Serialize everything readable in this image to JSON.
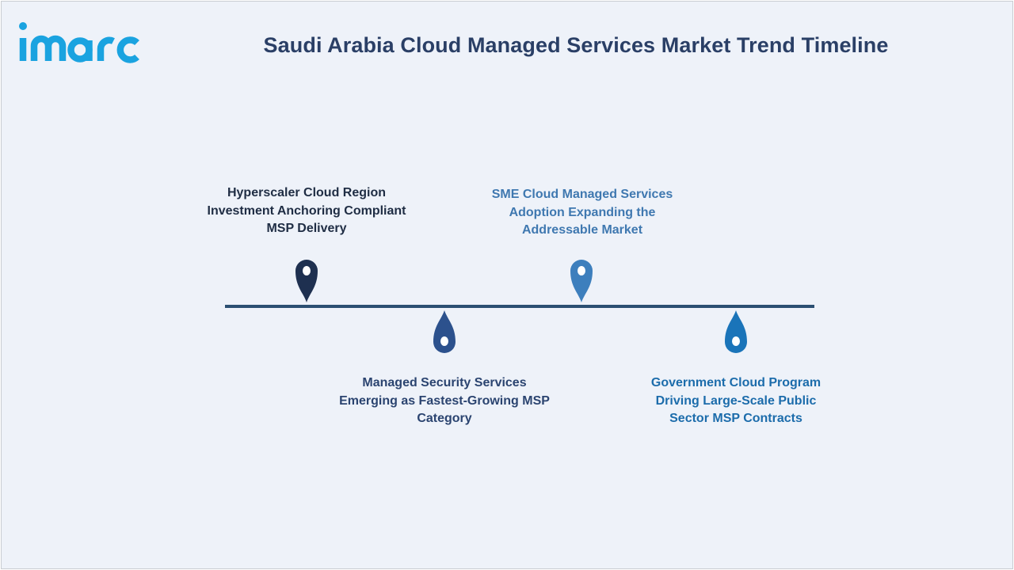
{
  "brand": {
    "name": "imarc",
    "logo_color": "#1aa3e0"
  },
  "title": "Saudi Arabia Cloud Managed Services Market Trend Timeline",
  "colors": {
    "title": "#2a3f66",
    "line": "#2b4f72",
    "background": "#eef2f9"
  },
  "milestones": [
    {
      "text": "Hyperscaler Cloud Region\nInvestment Anchoring Compliant\nMSP Delivery",
      "pin_color": "#1e3050",
      "text_color": "#1f2d44",
      "marker_icon": "location-pin-icon"
    },
    {
      "text": "Managed Security Services\nEmerging as Fastest-Growing MSP\nCategory",
      "pin_color": "#2c518d",
      "text_color": "#2b4470",
      "marker_icon": "drop-pin-icon"
    },
    {
      "text": "SME Cloud Managed Services\nAdoption Expanding the\nAddressable Market",
      "pin_color": "#3d7fbd",
      "text_color": "#3f78b0",
      "marker_icon": "location-pin-icon"
    },
    {
      "text": "Government Cloud Program\nDriving Large-Scale Public\nSector MSP Contracts",
      "pin_color": "#1a74b9",
      "text_color": "#1c6cab",
      "marker_icon": "drop-pin-icon"
    }
  ]
}
